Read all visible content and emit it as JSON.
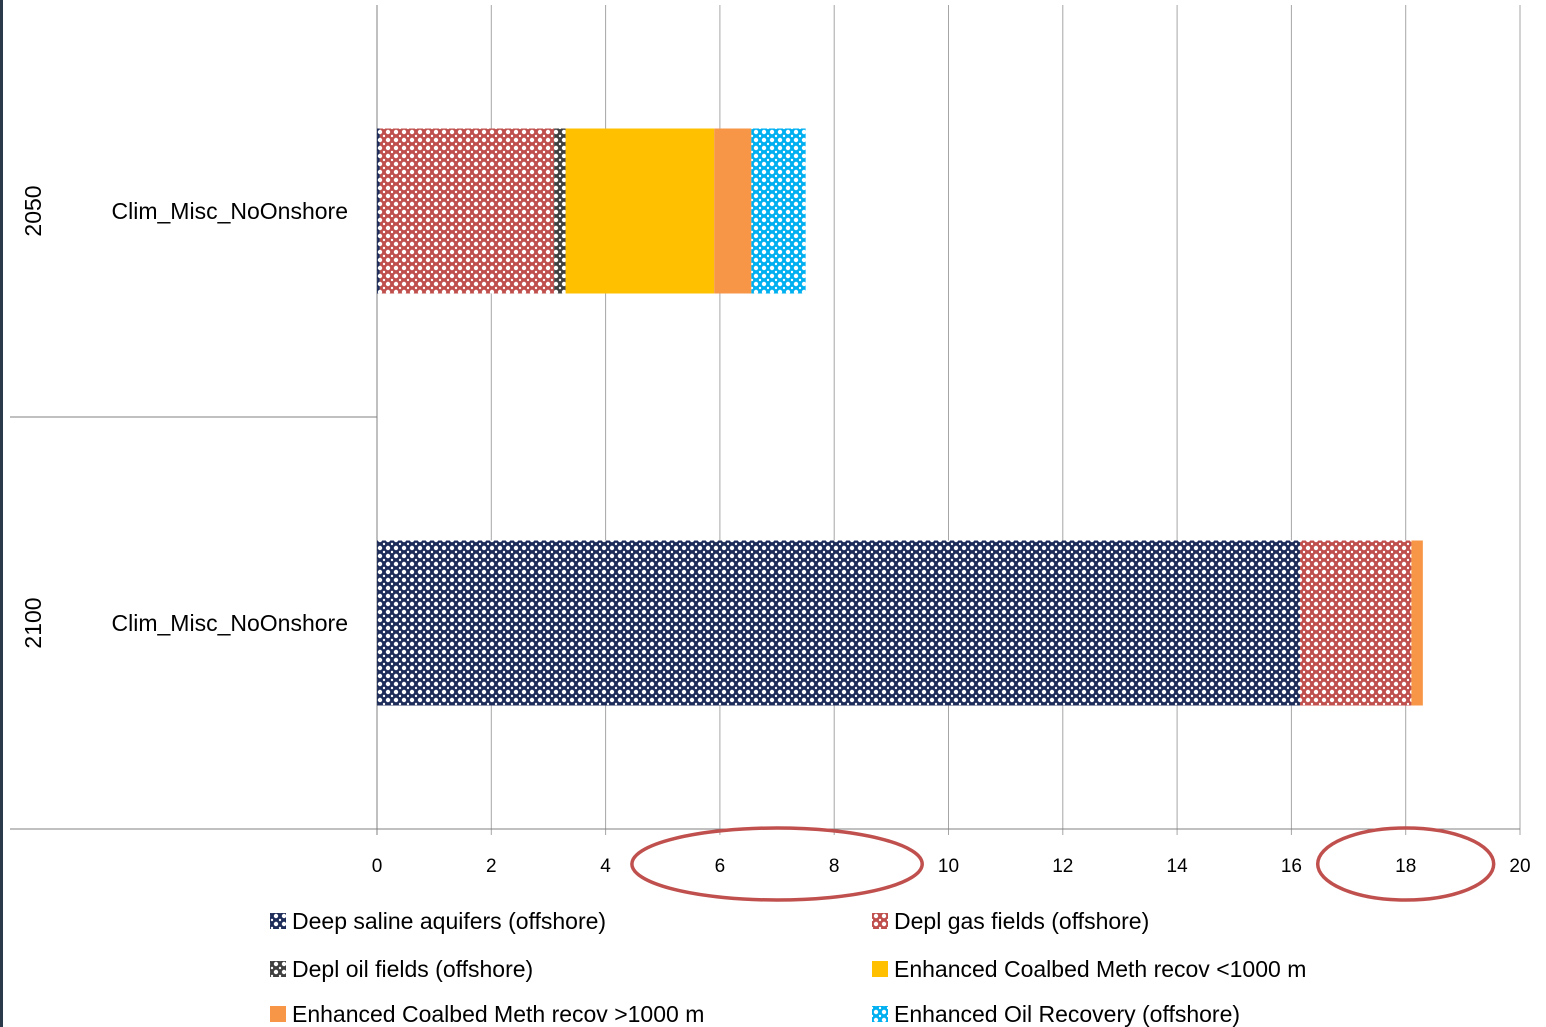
{
  "chart_data": {
    "type": "bar",
    "orientation": "horizontal",
    "stacked": true,
    "xlim": [
      0,
      20
    ],
    "x_ticks": [
      "0",
      "2",
      "4",
      "6",
      "8",
      "10",
      "12",
      "14",
      "16",
      "18",
      "20"
    ],
    "grid": true,
    "legend_position": "bottom",
    "categories": [
      {
        "group": "2050",
        "label": "Clim_Misc_NoOnshore"
      },
      {
        "group": "2100",
        "label": "Clim_Misc_NoOnshore"
      }
    ],
    "series": [
      {
        "name": "Deep saline aquifers (offshore)",
        "color": "#1f2d5a",
        "pattern": "dots",
        "values": [
          0.05,
          16.15
        ]
      },
      {
        "name": "Depl gas fields (offshore)",
        "color": "#c0504d",
        "pattern": "dots",
        "values": [
          3.05,
          1.95
        ]
      },
      {
        "name": "Depl oil fields (offshore)",
        "color": "#404040",
        "pattern": "dots",
        "values": [
          0.2,
          0
        ]
      },
      {
        "name": "Enhanced Coalbed Meth recov <1000 m",
        "color": "#ffc000",
        "pattern": "solid",
        "values": [
          2.6,
          0
        ]
      },
      {
        "name": "Enhanced Coalbed Meth recov >1000 m",
        "color": "#f79646",
        "pattern": "solid",
        "values": [
          0.65,
          0.2
        ]
      },
      {
        "name": "Enhanced Oil Recovery (offshore)",
        "color": "#00b0f0",
        "pattern": "dots",
        "values": [
          0.95,
          0
        ]
      }
    ],
    "annotations": [
      {
        "type": "ellipse",
        "around_ticks": [
          "6",
          "8"
        ],
        "color": "#c0504d"
      },
      {
        "type": "ellipse",
        "around_ticks": [
          "18"
        ],
        "color": "#c0504d"
      }
    ]
  }
}
